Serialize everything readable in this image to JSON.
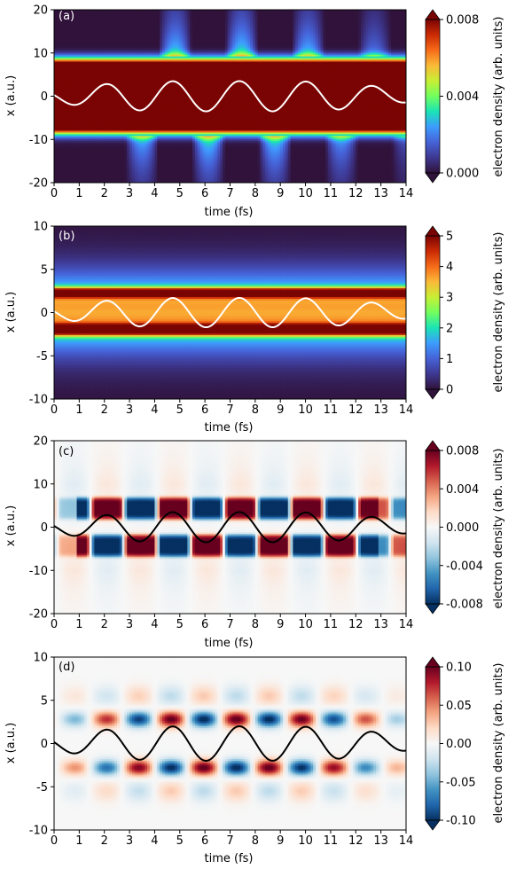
{
  "colors": {
    "jet_stops": [
      "#30123b",
      "#3e3891",
      "#4662d7",
      "#3e9bfe",
      "#1ae4b6",
      "#72fe5e",
      "#c7ef34",
      "#faba39",
      "#f66b19",
      "#cb2a04",
      "#7a0403"
    ],
    "rdbu_stops": [
      "#053061",
      "#2166ac",
      "#4393c3",
      "#92c5de",
      "#d1e5f0",
      "#f7f7f7",
      "#fddbc7",
      "#f4a582",
      "#d6604d",
      "#b2182b",
      "#67001f"
    ],
    "white_line": "#ffffff",
    "black_line": "#000000"
  },
  "chart_data": [
    {
      "type": "heatmap",
      "panel_label": "(a)",
      "xlabel": "time (fs)",
      "ylabel": "x (a.u.)",
      "xlim": [
        0,
        14
      ],
      "ylim": [
        -20,
        20
      ],
      "x_ticks": [
        "0",
        "1",
        "2",
        "3",
        "4",
        "5",
        "6",
        "7",
        "8",
        "9",
        "10",
        "11",
        "12",
        "13",
        "14"
      ],
      "y_ticks": [
        "20",
        "10",
        "0",
        "-10",
        "-20"
      ],
      "colorbar": {
        "label": "electron density (arb. units)",
        "ticks": [
          "0.008",
          "0.004",
          "0.000"
        ],
        "range": [
          0,
          0.008
        ],
        "colormap": "jet",
        "extend": "both"
      },
      "overlay_line": {
        "color": "white",
        "amplitude": 3.5
      }
    },
    {
      "type": "heatmap",
      "panel_label": "(b)",
      "xlabel": "time (fs)",
      "ylabel": "x (a.u.)",
      "xlim": [
        0,
        14
      ],
      "ylim": [
        -10,
        10
      ],
      "x_ticks": [
        "0",
        "1",
        "2",
        "3",
        "4",
        "5",
        "6",
        "7",
        "8",
        "9",
        "10",
        "11",
        "12",
        "13",
        "14"
      ],
      "y_ticks": [
        "10",
        "5",
        "0",
        "-5",
        "-10"
      ],
      "colorbar": {
        "label": "electron density (arb. units)",
        "ticks": [
          "5",
          "4",
          "3",
          "2",
          "1",
          "0"
        ],
        "range": [
          0,
          5
        ],
        "colormap": "jet",
        "extend": "both"
      },
      "overlay_line": {
        "color": "white",
        "amplitude": 1.7
      }
    },
    {
      "type": "heatmap",
      "panel_label": "(c)",
      "xlabel": "time (fs)",
      "ylabel": "x (a.u.)",
      "xlim": [
        0,
        14
      ],
      "ylim": [
        -20,
        20
      ],
      "x_ticks": [
        "0",
        "1",
        "2",
        "3",
        "4",
        "5",
        "6",
        "7",
        "8",
        "9",
        "10",
        "11",
        "12",
        "13",
        "14"
      ],
      "y_ticks": [
        "20",
        "10",
        "0",
        "-10",
        "-20"
      ],
      "colorbar": {
        "label": "electron density (arb. units)",
        "ticks": [
          "0.008",
          "0.004",
          "0.000",
          "-0.004",
          "-0.008"
        ],
        "range": [
          -0.008,
          0.008
        ],
        "colormap": "RdBu_r",
        "extend": "both"
      },
      "overlay_line": {
        "color": "black",
        "amplitude": 3.5
      }
    },
    {
      "type": "heatmap",
      "panel_label": "(d)",
      "xlabel": "time (fs)",
      "ylabel": "x (a.u.)",
      "xlim": [
        0,
        14
      ],
      "ylim": [
        -10,
        10
      ],
      "x_ticks": [
        "0",
        "1",
        "2",
        "3",
        "4",
        "5",
        "6",
        "7",
        "8",
        "9",
        "10",
        "11",
        "12",
        "13",
        "14"
      ],
      "y_ticks": [
        "10",
        "5",
        "0",
        "-5",
        "-10"
      ],
      "colorbar": {
        "label": "electron density (arb. units)",
        "ticks": [
          "0.10",
          "0.05",
          "0.00",
          "-0.05",
          "-0.10"
        ],
        "range": [
          -0.1,
          0.1
        ],
        "colormap": "RdBu_r",
        "extend": "both"
      },
      "overlay_line": {
        "color": "black",
        "amplitude": 2.0
      }
    }
  ]
}
